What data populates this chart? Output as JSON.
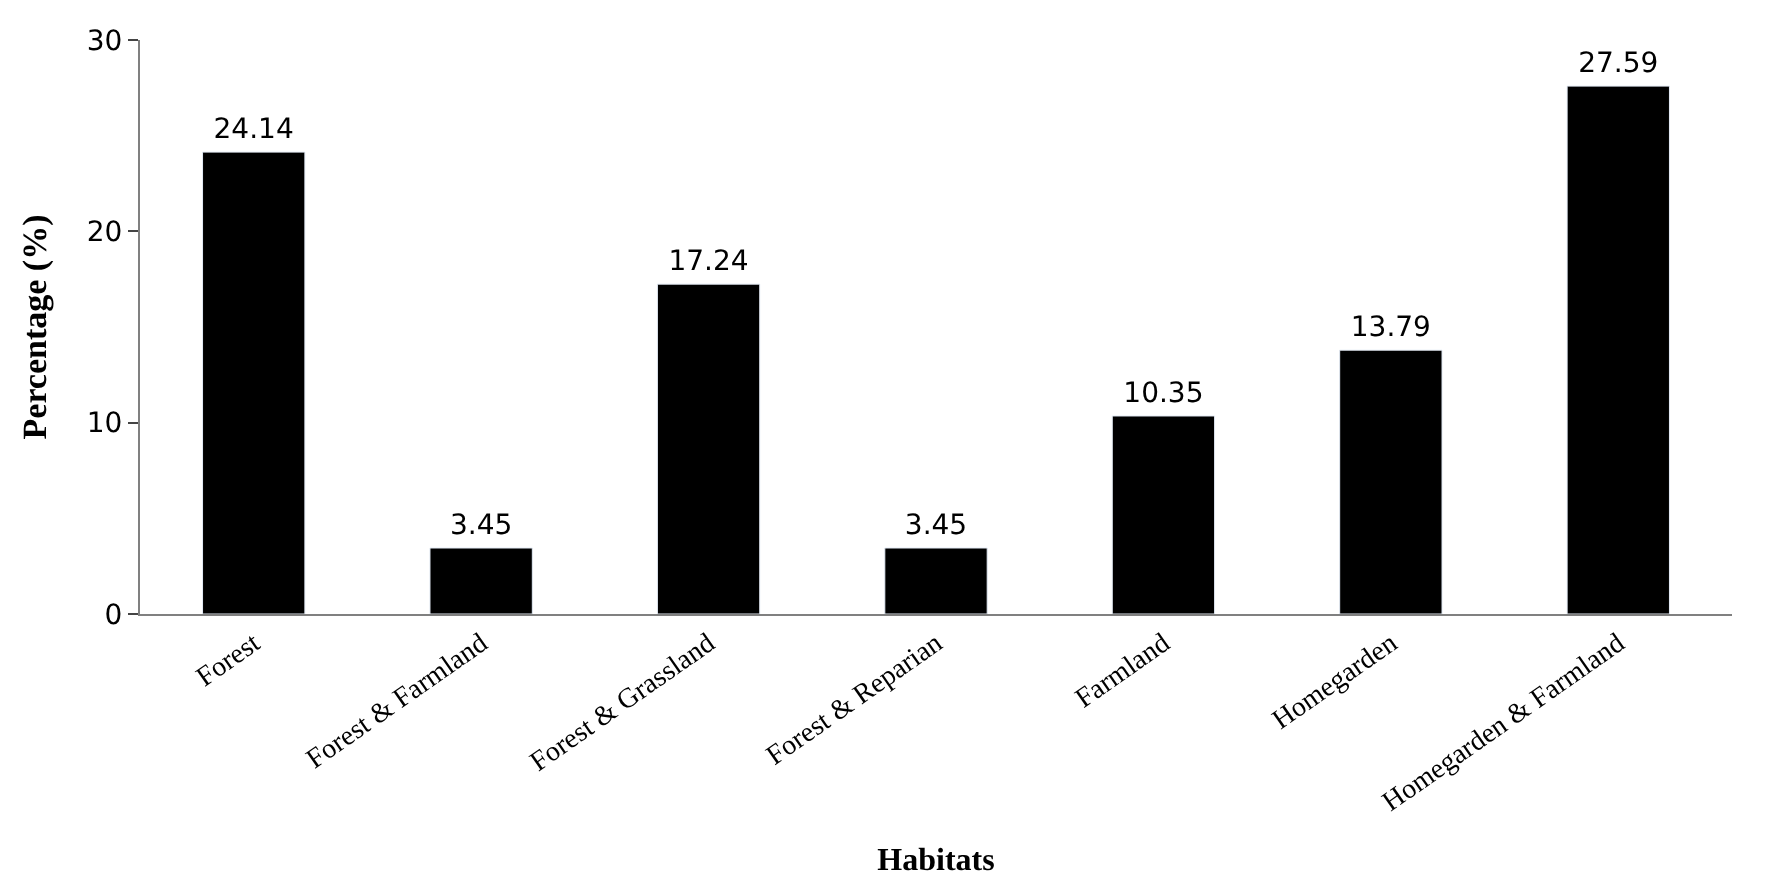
{
  "chart_data": {
    "type": "bar",
    "xlabel": "Habitats",
    "ylabel": "Percentage (%)",
    "categories": [
      "Forest",
      "Forest & Farmland",
      "Forest & Grassland",
      "Forest & Reparian",
      "Farmland",
      "Homegarden",
      "Homegarden & Farmland"
    ],
    "values": [
      24.14,
      3.45,
      17.24,
      3.45,
      10.35,
      13.79,
      27.59
    ],
    "color": "#000000",
    "ylim": [
      0,
      30
    ],
    "yticks": [
      0,
      10,
      20,
      30
    ],
    "data_labels": true
  }
}
